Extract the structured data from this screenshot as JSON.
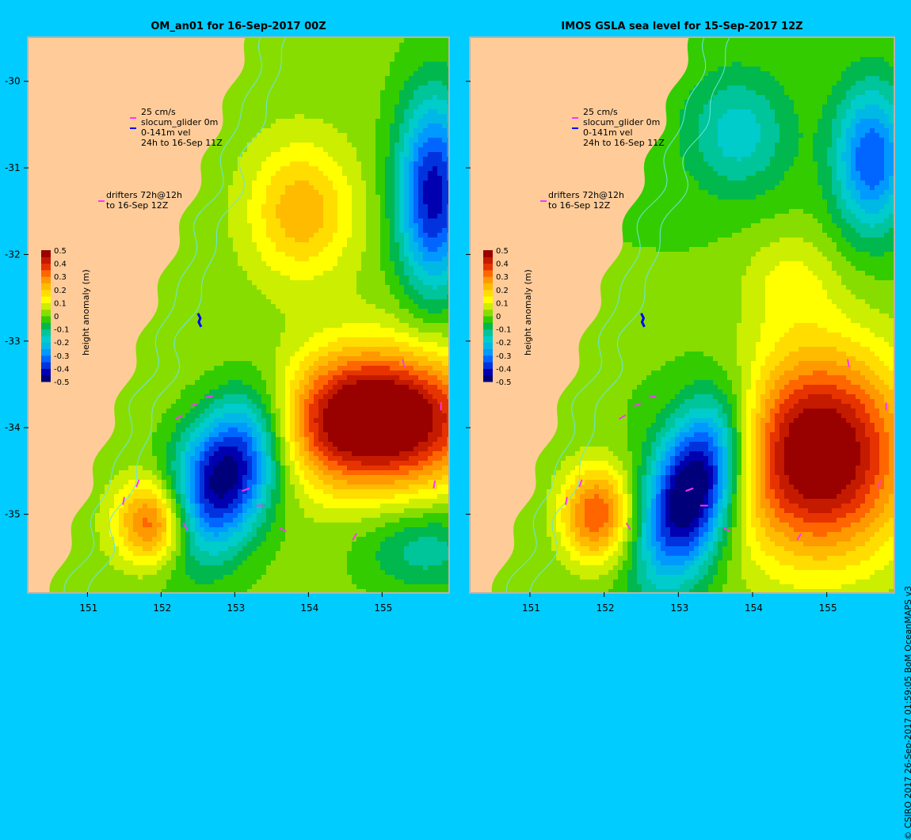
{
  "page": {
    "background": "#00ccff"
  },
  "credit": "© CSIRO 2017   26-Sep-2017 01:59:05 BoM OceanMAPS v3",
  "panels": [
    {
      "title": "OM_an01 for 16-Sep-2017 00Z",
      "legend_vectors": [
        "25 cm/s",
        "slocum_glider 0m",
        "0-141m vel",
        "24h to 16-Sep 11Z"
      ],
      "legend_drifters": [
        "drifters 72h@12h",
        "to 16-Sep 12Z"
      ]
    },
    {
      "title": "IMOS GSLA sea level  for 15-Sep-2017 12Z",
      "legend_vectors": [
        "25 cm/s",
        "slocum_glider 0m",
        "0-141m vel",
        "24h to 16-Sep 11Z"
      ],
      "legend_drifters": [
        "drifters 72h@12h",
        "to 16-Sep 12Z"
      ]
    }
  ],
  "axes": {
    "lon_ticks": [
      "151",
      "152",
      "153",
      "154",
      "155"
    ],
    "lat_ticks": [
      "-30",
      "-31",
      "-32",
      "-33",
      "-34",
      "-35"
    ],
    "lon_range": [
      150.2,
      155.9
    ],
    "lat_range": [
      -35.9,
      -29.5
    ]
  },
  "colorbar": {
    "label": "height anomaly (m)",
    "ticks": [
      "0.5",
      "0.4",
      "0.3",
      "0.2",
      "0.1",
      "0",
      "-0.1",
      "-0.2",
      "-0.3",
      "-0.4",
      "-0.5"
    ],
    "range": [
      -0.5,
      0.5
    ]
  },
  "colors": {
    "land": "#ffcc99",
    "shelf_line": "#66e6e6",
    "drifter": "#ff33ff",
    "glider": "#0000ff",
    "frame": "#b8b2aa"
  }
}
